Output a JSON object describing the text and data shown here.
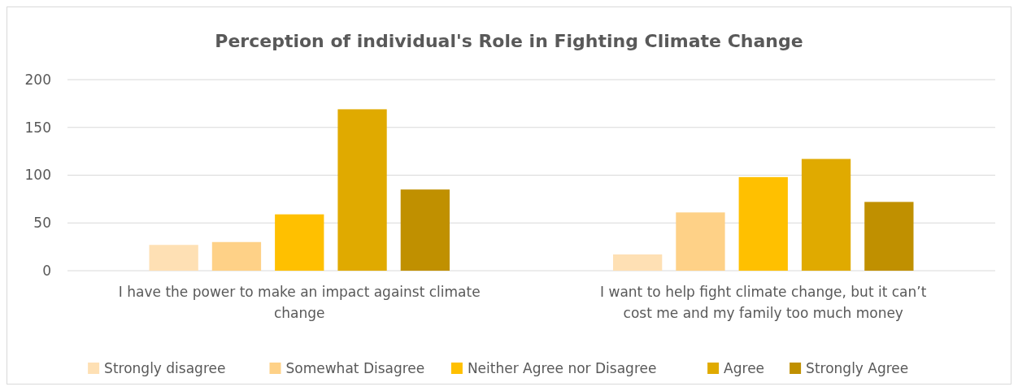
{
  "chart_data": {
    "type": "bar",
    "title": "Perception of individual's Role in Fighting Climate Change",
    "categories": [
      "I have the power to make an impact against climate change",
      "I want to help fight climate change, but it can’t cost me and my family too much money"
    ],
    "series": [
      {
        "name": "Strongly disagree",
        "color": "#fee0b4",
        "values": [
          27,
          17
        ]
      },
      {
        "name": "Somewhat Disagree",
        "color": "#fed187",
        "values": [
          30,
          61
        ]
      },
      {
        "name": "Neither Agree nor Disagree",
        "color": "#ffc000",
        "values": [
          59,
          98
        ]
      },
      {
        "name": "Agree",
        "color": "#e0aa00",
        "values": [
          169,
          117
        ]
      },
      {
        "name": "Strongly Agree",
        "color": "#c09000",
        "values": [
          85,
          72
        ]
      }
    ],
    "ylim": [
      0,
      200
    ],
    "yticks": [
      0,
      50,
      100,
      150,
      200
    ],
    "grid": "y",
    "legend": "bottom"
  }
}
